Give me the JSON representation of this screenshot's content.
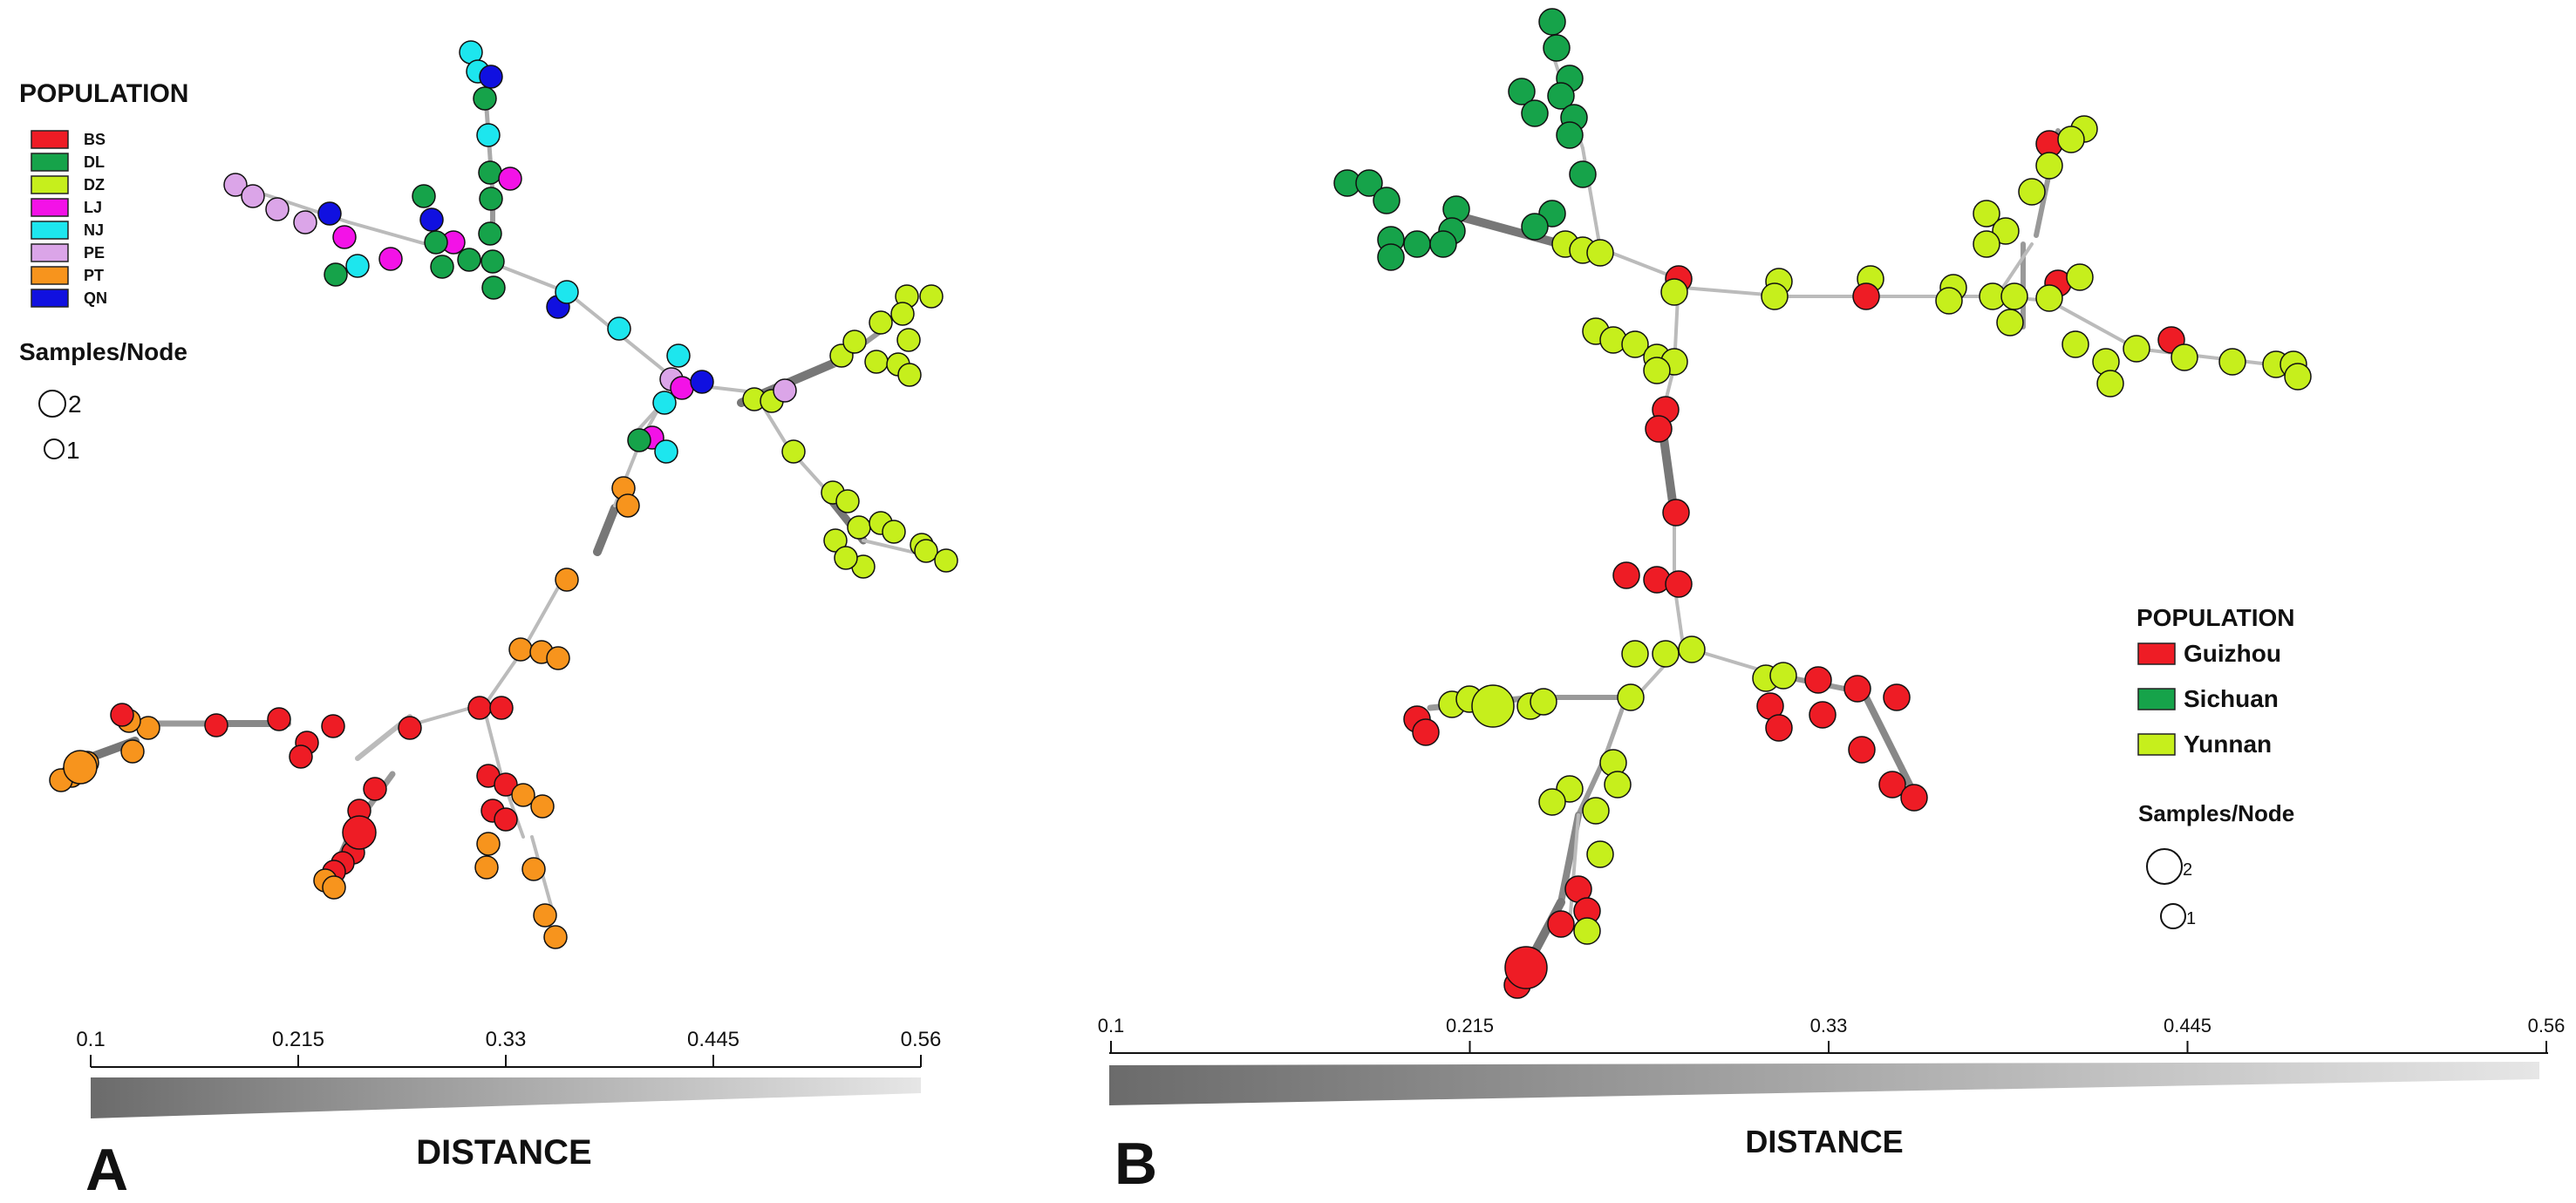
{
  "colors": {
    "BS": "#ee1c25",
    "DL": "#16a34a",
    "DZ": "#c6ef1c",
    "LJ": "#f312e7",
    "NJ": "#1de6ee",
    "PE": "#dba5e8",
    "PT": "#f7941d",
    "QN": "#1010e0",
    "Guizhou": "#ee1c25",
    "Sichuan": "#16a34a",
    "Yunnan": "#c6ef1c"
  },
  "panel_a": {
    "letter": "A",
    "legend_title": "POPULATION",
    "legend": [
      {
        "key": "BS",
        "label": "BS"
      },
      {
        "key": "DL",
        "label": "DL"
      },
      {
        "key": "DZ",
        "label": "DZ"
      },
      {
        "key": "LJ",
        "label": "LJ"
      },
      {
        "key": "NJ",
        "label": "NJ"
      },
      {
        "key": "PE",
        "label": "PE"
      },
      {
        "key": "PT",
        "label": "PT"
      },
      {
        "key": "QN",
        "label": "QN"
      }
    ],
    "samples_title": "Samples/Node",
    "samples": [
      {
        "label": "2",
        "n": 2
      },
      {
        "label": "1",
        "n": 1
      }
    ],
    "distance_label": "DISTANCE",
    "ticks": [
      "0.1",
      "0.215",
      "0.33",
      "0.445",
      "0.56"
    ]
  },
  "panel_b": {
    "letter": "B",
    "legend_title": "POPULATION",
    "legend": [
      {
        "key": "Guizhou",
        "label": "Guizhou"
      },
      {
        "key": "Sichuan",
        "label": "Sichuan"
      },
      {
        "key": "Yunnan",
        "label": "Yunnan"
      }
    ],
    "samples_title": "Samples/Node",
    "samples": [
      {
        "label": "2",
        "n": 2
      },
      {
        "label": "1",
        "n": 1
      }
    ],
    "distance_label": "DISTANCE",
    "ticks": [
      "0.1",
      "0.215",
      "0.33",
      "0.445",
      "0.56"
    ]
  }
}
